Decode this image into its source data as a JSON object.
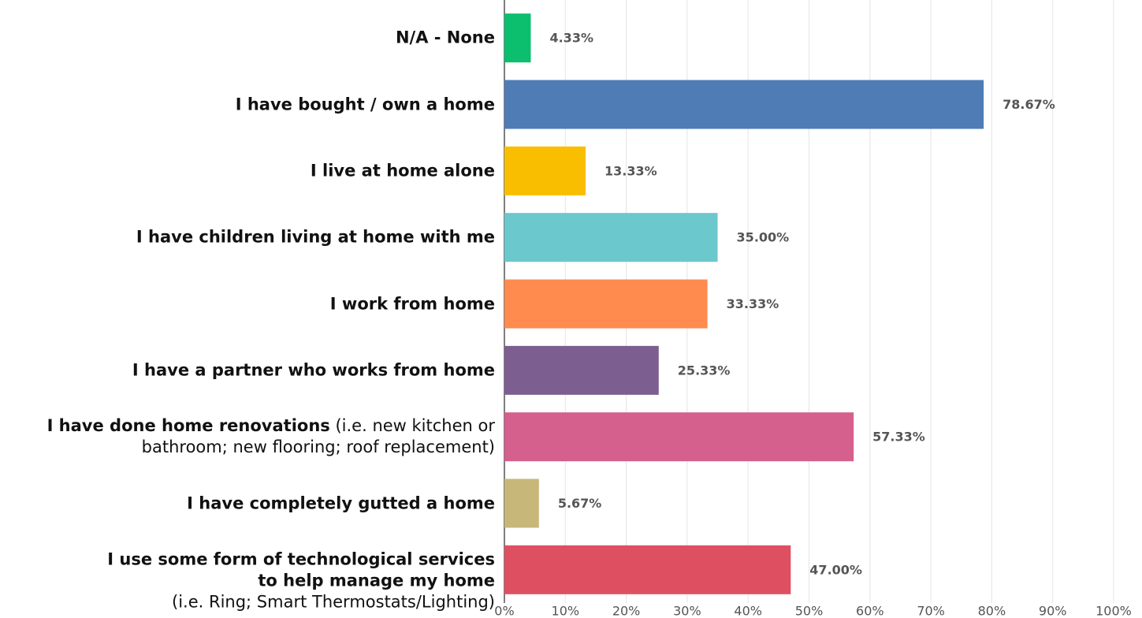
{
  "chart_data": {
    "type": "barh",
    "categories": [
      "N/A - None",
      "I have bought / own a home",
      "I live at home alone",
      "I have children living at home with me",
      "I work from home",
      "I have a partner who works from home",
      "I have done home renovations",
      "I have completely gutted a home",
      "I use some form of technological services to help manage my home"
    ],
    "category_notes": [
      null,
      null,
      null,
      null,
      null,
      null,
      "(i.e. new kitchen or bathroom; new flooring; roof replacement)",
      null,
      "(i.e. Ring; Smart Thermostats/Lighting)"
    ],
    "values": [
      4.33,
      78.67,
      13.33,
      35.0,
      33.33,
      25.33,
      57.33,
      5.67,
      47.0
    ],
    "value_labels": [
      "4.33%",
      "78.67%",
      "13.33%",
      "35.00%",
      "33.33%",
      "25.33%",
      "57.33%",
      "5.67%",
      "47.00%"
    ],
    "colors": [
      "#0bbf6f",
      "#507cb6",
      "#f9be00",
      "#6bc8cd",
      "#ff8b4f",
      "#7d5e90",
      "#d55f8d",
      "#c7b879",
      "#de5061"
    ],
    "xlim": [
      0,
      100
    ],
    "xticks": [
      {
        "value": 0,
        "label": "0%"
      },
      {
        "value": 10,
        "label": "10%"
      },
      {
        "value": 20,
        "label": "20%"
      },
      {
        "value": 30,
        "label": "30%"
      },
      {
        "value": 40,
        "label": "40%"
      },
      {
        "value": 50,
        "label": "50%"
      },
      {
        "value": 60,
        "label": "60%"
      },
      {
        "value": 70,
        "label": "70%"
      },
      {
        "value": 80,
        "label": "80%"
      },
      {
        "value": 90,
        "label": "90%"
      },
      {
        "value": 100,
        "label": "100%"
      }
    ],
    "grid": true
  }
}
